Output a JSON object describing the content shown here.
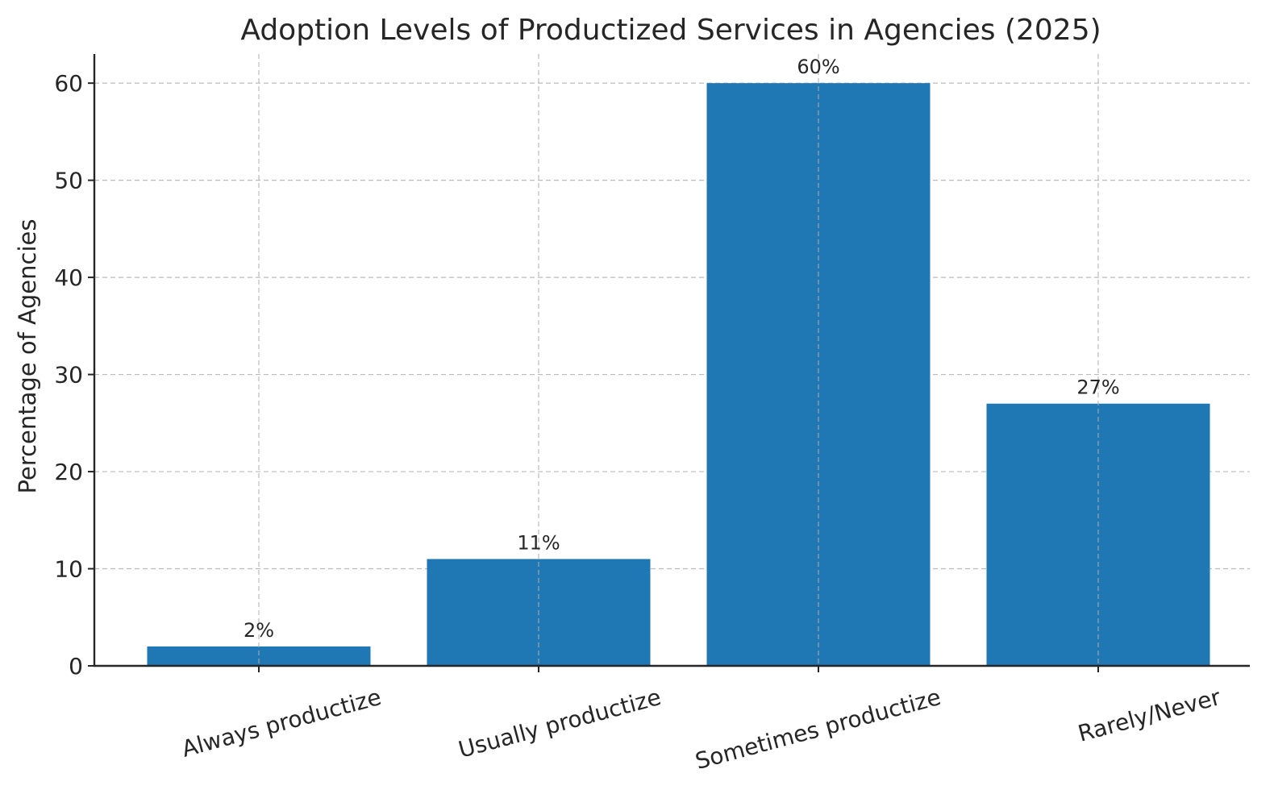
{
  "chart_data": {
    "type": "bar",
    "title": "Adoption Levels of Productized Services in Agencies (2025)",
    "xlabel": "",
    "ylabel": "Percentage of Agencies",
    "categories": [
      "Always productize",
      "Usually productize",
      "Sometimes productize",
      "Rarely/Never"
    ],
    "values": [
      2,
      11,
      60,
      27
    ],
    "value_labels": [
      "2%",
      "11%",
      "60%",
      "27%"
    ],
    "ylim": [
      0,
      63
    ],
    "yticks": [
      0,
      10,
      20,
      30,
      40,
      50,
      60
    ],
    "ytick_labels": [
      "0",
      "10",
      "20",
      "30",
      "40",
      "50",
      "60"
    ],
    "grid": true,
    "bar_color": "#1f77b4",
    "legend": "none"
  }
}
